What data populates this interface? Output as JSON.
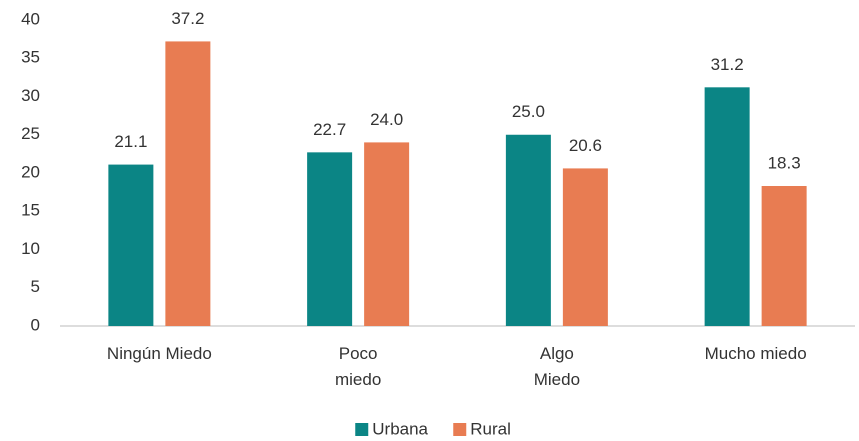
{
  "chart_data": {
    "type": "bar",
    "categories": [
      [
        "Ningún Miedo"
      ],
      [
        "Poco",
        "miedo"
      ],
      [
        "Algo",
        "Miedo"
      ],
      [
        "Mucho miedo"
      ]
    ],
    "series": [
      {
        "name": "Urbana",
        "color": "#0b8585",
        "values": [
          21.1,
          22.7,
          25,
          31.2
        ],
        "value_labels": [
          "21.1",
          "22.7",
          "25.0",
          "31.2"
        ]
      },
      {
        "name": "Rural",
        "color": "#e87c52",
        "values": [
          37.2,
          24,
          20.6,
          18.3
        ],
        "value_labels": [
          "37.2",
          "24.0",
          "20.6",
          "18.3"
        ]
      }
    ],
    "ylim": [
      0,
      40
    ],
    "yticks": [
      0,
      5,
      10,
      15,
      20,
      25,
      30,
      35,
      40
    ],
    "grid": false,
    "legend": "bottom"
  }
}
